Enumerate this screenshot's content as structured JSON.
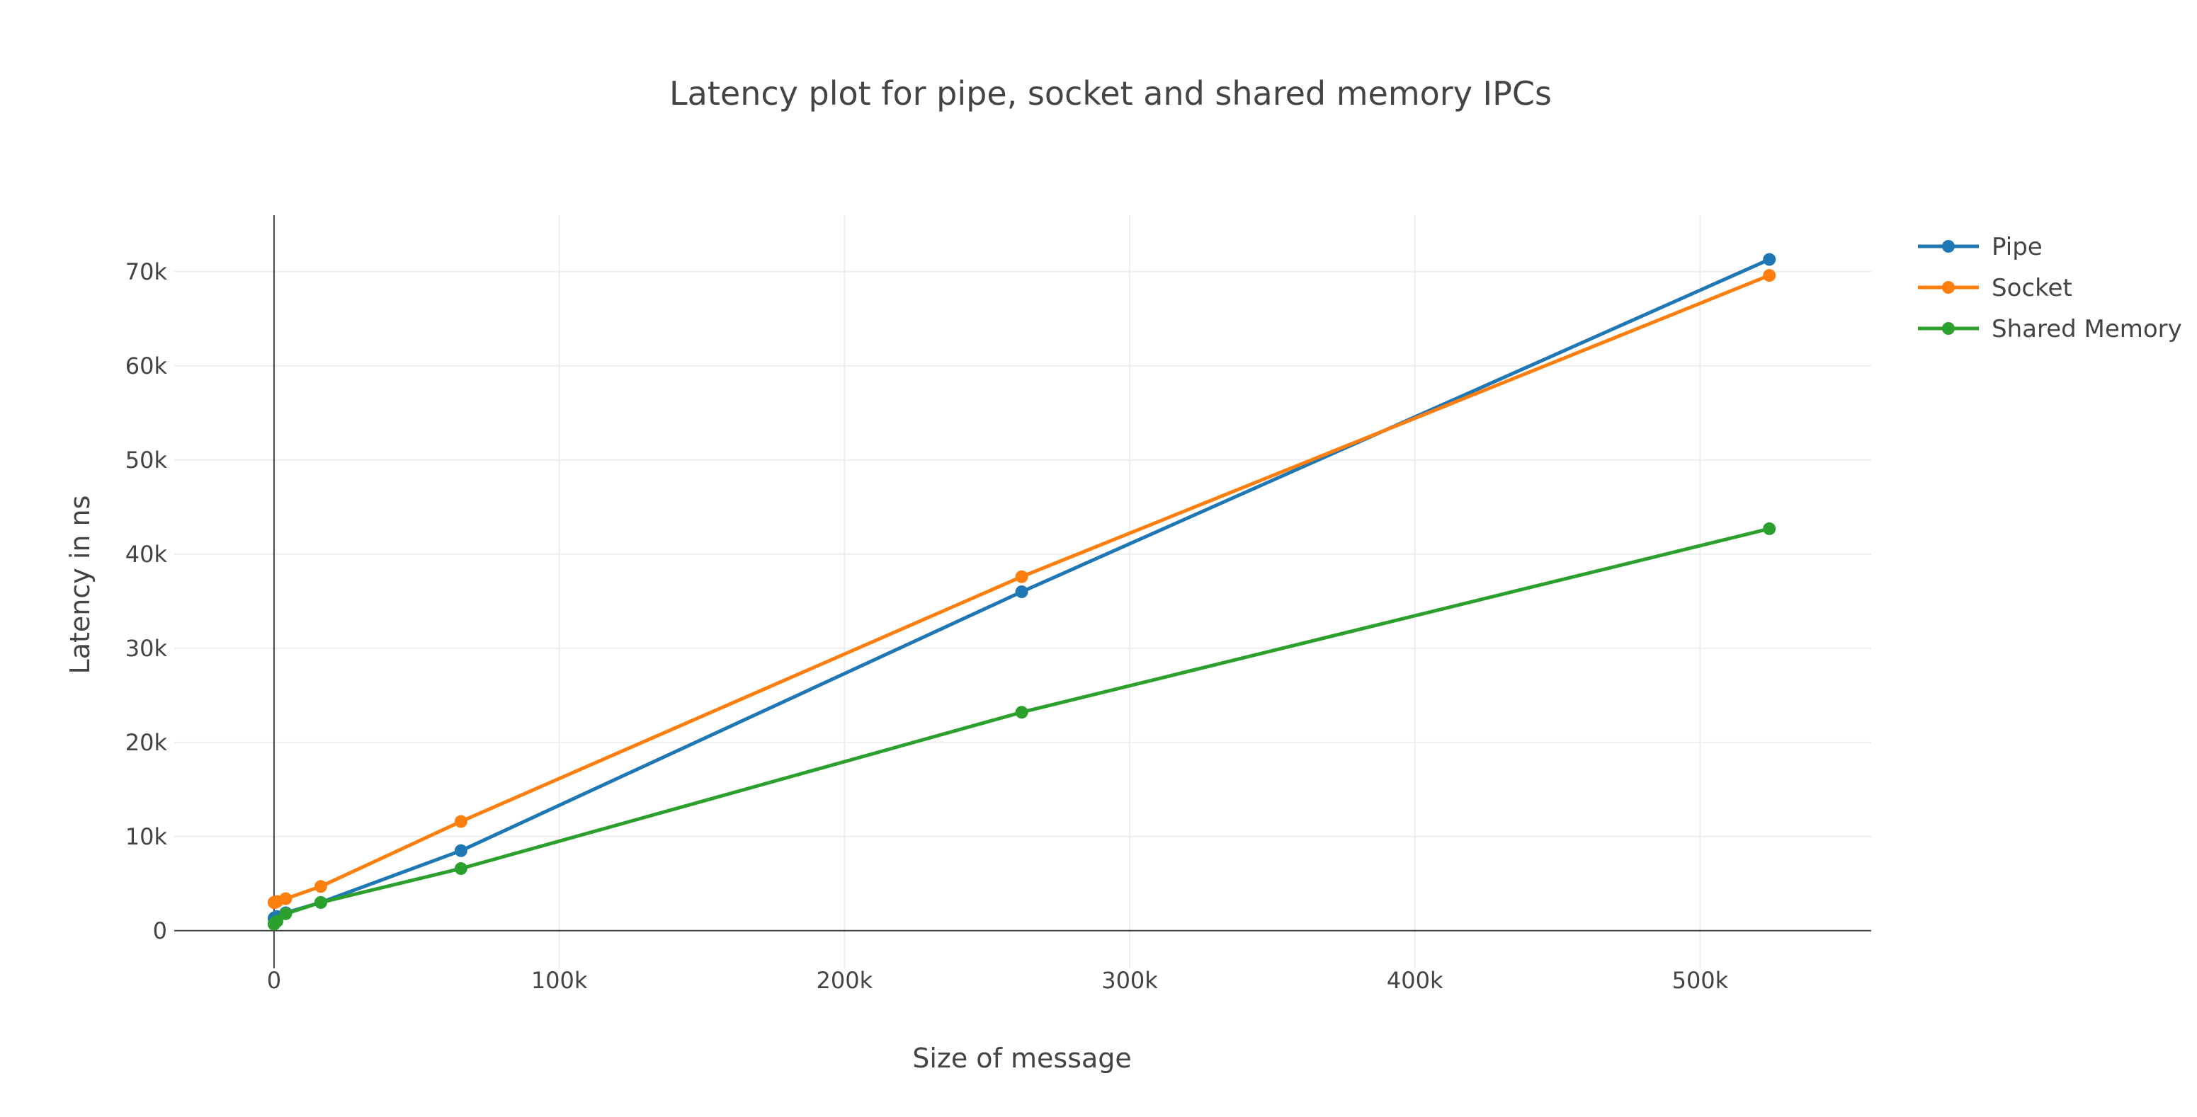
{
  "chart_data": {
    "type": "line",
    "title": "Latency plot for pipe, socket and shared memory IPCs",
    "xlabel": "Size of message",
    "ylabel": "Latency in ns",
    "xlim": [
      -35000,
      560000
    ],
    "ylim": [
      -4000,
      76000
    ],
    "xticks": [
      0,
      100000,
      200000,
      300000,
      400000,
      500000
    ],
    "xtick_labels": [
      "0",
      "100k",
      "200k",
      "300k",
      "400k",
      "500k"
    ],
    "yticks": [
      0,
      10000,
      20000,
      30000,
      40000,
      50000,
      60000,
      70000
    ],
    "ytick_labels": [
      "0",
      "10k",
      "20k",
      "30k",
      "40k",
      "50k",
      "60k",
      "70k"
    ],
    "grid": true,
    "legend_position": "top-right",
    "series": [
      {
        "name": "Pipe",
        "color": "#1f77b4",
        "points": [
          [
            4,
            1300
          ],
          [
            16,
            1300
          ],
          [
            64,
            1350
          ],
          [
            256,
            1400
          ],
          [
            1024,
            1500
          ],
          [
            4096,
            1900
          ],
          [
            16384,
            3000
          ],
          [
            65536,
            8500
          ],
          [
            262144,
            36000
          ],
          [
            524288,
            71300
          ]
        ]
      },
      {
        "name": "Socket",
        "color": "#ff7f0e",
        "points": [
          [
            4,
            3000
          ],
          [
            16,
            3000
          ],
          [
            64,
            3000
          ],
          [
            256,
            3000
          ],
          [
            1024,
            3100
          ],
          [
            4096,
            3400
          ],
          [
            16384,
            4700
          ],
          [
            65536,
            11600
          ],
          [
            262144,
            37600
          ],
          [
            524288,
            69600
          ]
        ]
      },
      {
        "name": "Shared Memory",
        "color": "#2ca02c",
        "points": [
          [
            4,
            700
          ],
          [
            16,
            700
          ],
          [
            64,
            750
          ],
          [
            256,
            800
          ],
          [
            1024,
            1000
          ],
          [
            4096,
            1800
          ],
          [
            16384,
            3000
          ],
          [
            65536,
            6600
          ],
          [
            262144,
            23200
          ],
          [
            524288,
            42700
          ]
        ]
      }
    ]
  }
}
